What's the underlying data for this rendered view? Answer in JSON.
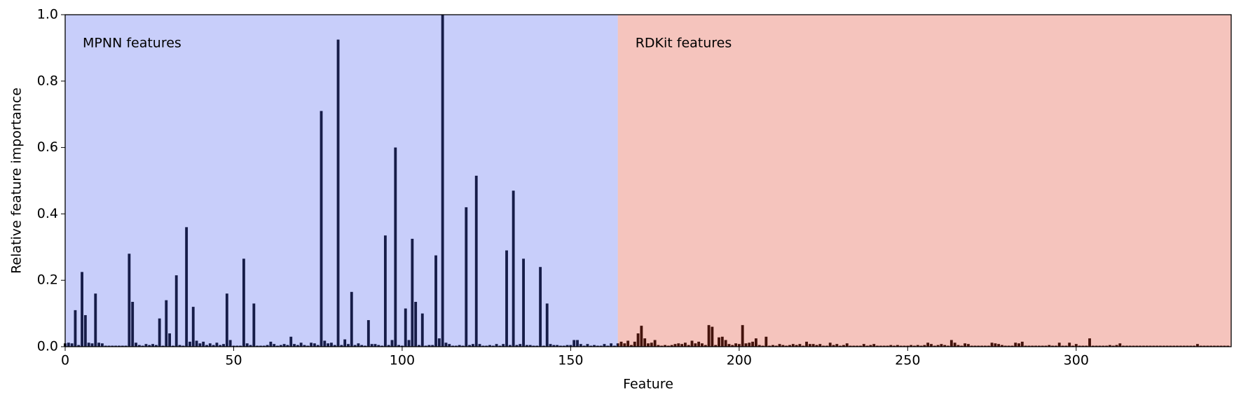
{
  "chart_data": {
    "type": "bar",
    "xlabel": "Feature",
    "ylabel": "Relative feature importance",
    "color": "#000000",
    "regions": [
      {
        "label": "MPNN features",
        "start": 0,
        "end": 164,
        "color": "#4a5cf0"
      },
      {
        "label": "RDKit features",
        "start": 164,
        "end": 346,
        "color": "#de3a23"
      }
    ],
    "xlim": [
      0,
      346
    ],
    "ylim": [
      0,
      1.0
    ],
    "xticks": [
      0,
      50,
      100,
      150,
      200,
      250,
      300
    ],
    "yticks": [
      {
        "value": 0,
        "label": "0.0"
      },
      {
        "value": 0.2,
        "label": "0.2"
      },
      {
        "value": 0.4,
        "label": "0.4"
      },
      {
        "value": 0.6,
        "label": "0.6"
      },
      {
        "value": 0.8,
        "label": "0.8"
      },
      {
        "value": 1.0,
        "label": "1.0"
      }
    ],
    "x": [
      0,
      1,
      2,
      3,
      4,
      5,
      6,
      7,
      8,
      9,
      10,
      11,
      12,
      13,
      14,
      15,
      16,
      17,
      18,
      19,
      20,
      21,
      22,
      23,
      24,
      25,
      26,
      27,
      28,
      29,
      30,
      31,
      32,
      33,
      34,
      35,
      36,
      37,
      38,
      39,
      40,
      41,
      42,
      43,
      44,
      45,
      46,
      47,
      48,
      49,
      50,
      51,
      52,
      53,
      54,
      55,
      56,
      57,
      58,
      59,
      60,
      61,
      62,
      63,
      64,
      65,
      66,
      67,
      68,
      69,
      70,
      71,
      72,
      73,
      74,
      75,
      76,
      77,
      78,
      79,
      80,
      81,
      82,
      83,
      84,
      85,
      86,
      87,
      88,
      89,
      90,
      91,
      92,
      93,
      94,
      95,
      96,
      97,
      98,
      99,
      100,
      101,
      102,
      103,
      104,
      105,
      106,
      107,
      108,
      109,
      110,
      111,
      112,
      113,
      114,
      115,
      116,
      117,
      118,
      119,
      120,
      121,
      122,
      123,
      124,
      125,
      126,
      127,
      128,
      129,
      130,
      131,
      132,
      133,
      134,
      135,
      136,
      137,
      138,
      139,
      140,
      141,
      142,
      143,
      144,
      145,
      146,
      147,
      148,
      149,
      150,
      151,
      152,
      153,
      154,
      155,
      156,
      157,
      158,
      159,
      160,
      161,
      162,
      163,
      164,
      165,
      166,
      167,
      168,
      169,
      170,
      171,
      172,
      173,
      174,
      175,
      176,
      177,
      178,
      179,
      180,
      181,
      182,
      183,
      184,
      185,
      186,
      187,
      188,
      189,
      190,
      191,
      192,
      193,
      194,
      195,
      196,
      197,
      198,
      199,
      200,
      201,
      202,
      203,
      204,
      205,
      206,
      207,
      208,
      209,
      210,
      211,
      212,
      213,
      214,
      215,
      216,
      217,
      218,
      219,
      220,
      221,
      222,
      223,
      224,
      225,
      226,
      227,
      228,
      229,
      230,
      231,
      232,
      233,
      234,
      235,
      236,
      237,
      238,
      239,
      240,
      241,
      242,
      243,
      244,
      245,
      246,
      247,
      248,
      249,
      250,
      251,
      252,
      253,
      254,
      255,
      256,
      257,
      258,
      259,
      260,
      261,
      262,
      263,
      264,
      265,
      266,
      267,
      268,
      269,
      270,
      271,
      272,
      273,
      274,
      275,
      276,
      277,
      278,
      279,
      280,
      281,
      282,
      283,
      284,
      285,
      286,
      287,
      288,
      289,
      290,
      291,
      292,
      293,
      294,
      295,
      296,
      297,
      298,
      299,
      300,
      301,
      302,
      303,
      304,
      305,
      306,
      307,
      308,
      309,
      310,
      311,
      312,
      313,
      314,
      315,
      316,
      317,
      318,
      319,
      320,
      321,
      322,
      323,
      324,
      325,
      326,
      327,
      328,
      329,
      330,
      331,
      332,
      333,
      334,
      335,
      336,
      337,
      338,
      339,
      340,
      341,
      342,
      343,
      344,
      345
    ],
    "values": [
      0.01,
      0.012,
      0.01,
      0.11,
      0.005,
      0.225,
      0.095,
      0.012,
      0.01,
      0.16,
      0.012,
      0.01,
      0.003,
      0.003,
      0.003,
      0.003,
      0.003,
      0.003,
      0.003,
      0.28,
      0.135,
      0.012,
      0.005,
      0.003,
      0.008,
      0.005,
      0.008,
      0.005,
      0.085,
      0.003,
      0.14,
      0.04,
      0.003,
      0.215,
      0.005,
      0.003,
      0.36,
      0.015,
      0.12,
      0.018,
      0.01,
      0.015,
      0.005,
      0.01,
      0.005,
      0.012,
      0.005,
      0.008,
      0.16,
      0.02,
      0.003,
      0.003,
      0.003,
      0.265,
      0.01,
      0.005,
      0.13,
      0.003,
      0.003,
      0.003,
      0.005,
      0.015,
      0.008,
      0.003,
      0.005,
      0.008,
      0.005,
      0.03,
      0.008,
      0.005,
      0.012,
      0.005,
      0.003,
      0.012,
      0.01,
      0.005,
      0.71,
      0.018,
      0.01,
      0.012,
      0.005,
      0.925,
      0.005,
      0.022,
      0.008,
      0.165,
      0.005,
      0.01,
      0.005,
      0.003,
      0.08,
      0.008,
      0.008,
      0.005,
      0.003,
      0.335,
      0.005,
      0.02,
      0.6,
      0.005,
      0.003,
      0.115,
      0.02,
      0.325,
      0.135,
      0.005,
      0.1,
      0.003,
      0.005,
      0.005,
      0.275,
      0.025,
      1.0,
      0.012,
      0.008,
      0.003,
      0.003,
      0.005,
      0.003,
      0.42,
      0.005,
      0.008,
      0.515,
      0.008,
      0.003,
      0.003,
      0.005,
      0.003,
      0.008,
      0.003,
      0.008,
      0.29,
      0.005,
      0.47,
      0.005,
      0.008,
      0.265,
      0.005,
      0.005,
      0.003,
      0.003,
      0.24,
      0.003,
      0.13,
      0.008,
      0.005,
      0.005,
      0.003,
      0.003,
      0.005,
      0.005,
      0.02,
      0.02,
      0.008,
      0.003,
      0.008,
      0.003,
      0.005,
      0.003,
      0.003,
      0.008,
      0.003,
      0.01,
      0.003,
      0.01,
      0.015,
      0.01,
      0.018,
      0.005,
      0.015,
      0.04,
      0.063,
      0.025,
      0.01,
      0.012,
      0.02,
      0.005,
      0.003,
      0.005,
      0.003,
      0.005,
      0.008,
      0.01,
      0.008,
      0.012,
      0.005,
      0.018,
      0.01,
      0.015,
      0.01,
      0.005,
      0.065,
      0.06,
      0.005,
      0.028,
      0.03,
      0.02,
      0.008,
      0.005,
      0.01,
      0.008,
      0.065,
      0.01,
      0.012,
      0.015,
      0.025,
      0.005,
      0.003,
      0.03,
      0.003,
      0.005,
      0.003,
      0.008,
      0.005,
      0.003,
      0.005,
      0.008,
      0.005,
      0.008,
      0.003,
      0.015,
      0.008,
      0.008,
      0.005,
      0.008,
      0.003,
      0.003,
      0.012,
      0.005,
      0.008,
      0.003,
      0.005,
      0.01,
      0.003,
      0.003,
      0.003,
      0.003,
      0.008,
      0.003,
      0.005,
      0.008,
      0.003,
      0.003,
      0.003,
      0.003,
      0.005,
      0.003,
      0.005,
      0.003,
      0.003,
      0.003,
      0.005,
      0.003,
      0.005,
      0.003,
      0.005,
      0.012,
      0.008,
      0.003,
      0.005,
      0.008,
      0.005,
      0.003,
      0.02,
      0.012,
      0.005,
      0.003,
      0.01,
      0.008,
      0.003,
      0.003,
      0.003,
      0.003,
      0.003,
      0.003,
      0.012,
      0.01,
      0.008,
      0.005,
      0.003,
      0.003,
      0.003,
      0.012,
      0.01,
      0.015,
      0.003,
      0.003,
      0.003,
      0.003,
      0.003,
      0.003,
      0.003,
      0.005,
      0.003,
      0.003,
      0.012,
      0.003,
      0.003,
      0.012,
      0.003,
      0.008,
      0.003,
      0.003,
      0.003,
      0.025,
      0.003,
      0.003,
      0.003,
      0.003,
      0.003,
      0.005,
      0.003,
      0.005,
      0.01,
      0.003,
      0.003,
      0.003,
      0.003,
      0.003,
      0.003,
      0.003,
      0.003,
      0.003,
      0.003,
      0.003,
      0.003,
      0.003,
      0.003,
      0.003,
      0.003,
      0.003,
      0.003,
      0.003,
      0.003,
      0.003,
      0.003,
      0.008,
      0.003,
      0.003,
      0.003,
      0.003,
      0.003,
      0.003,
      0.003,
      0.003,
      0.003
    ]
  }
}
